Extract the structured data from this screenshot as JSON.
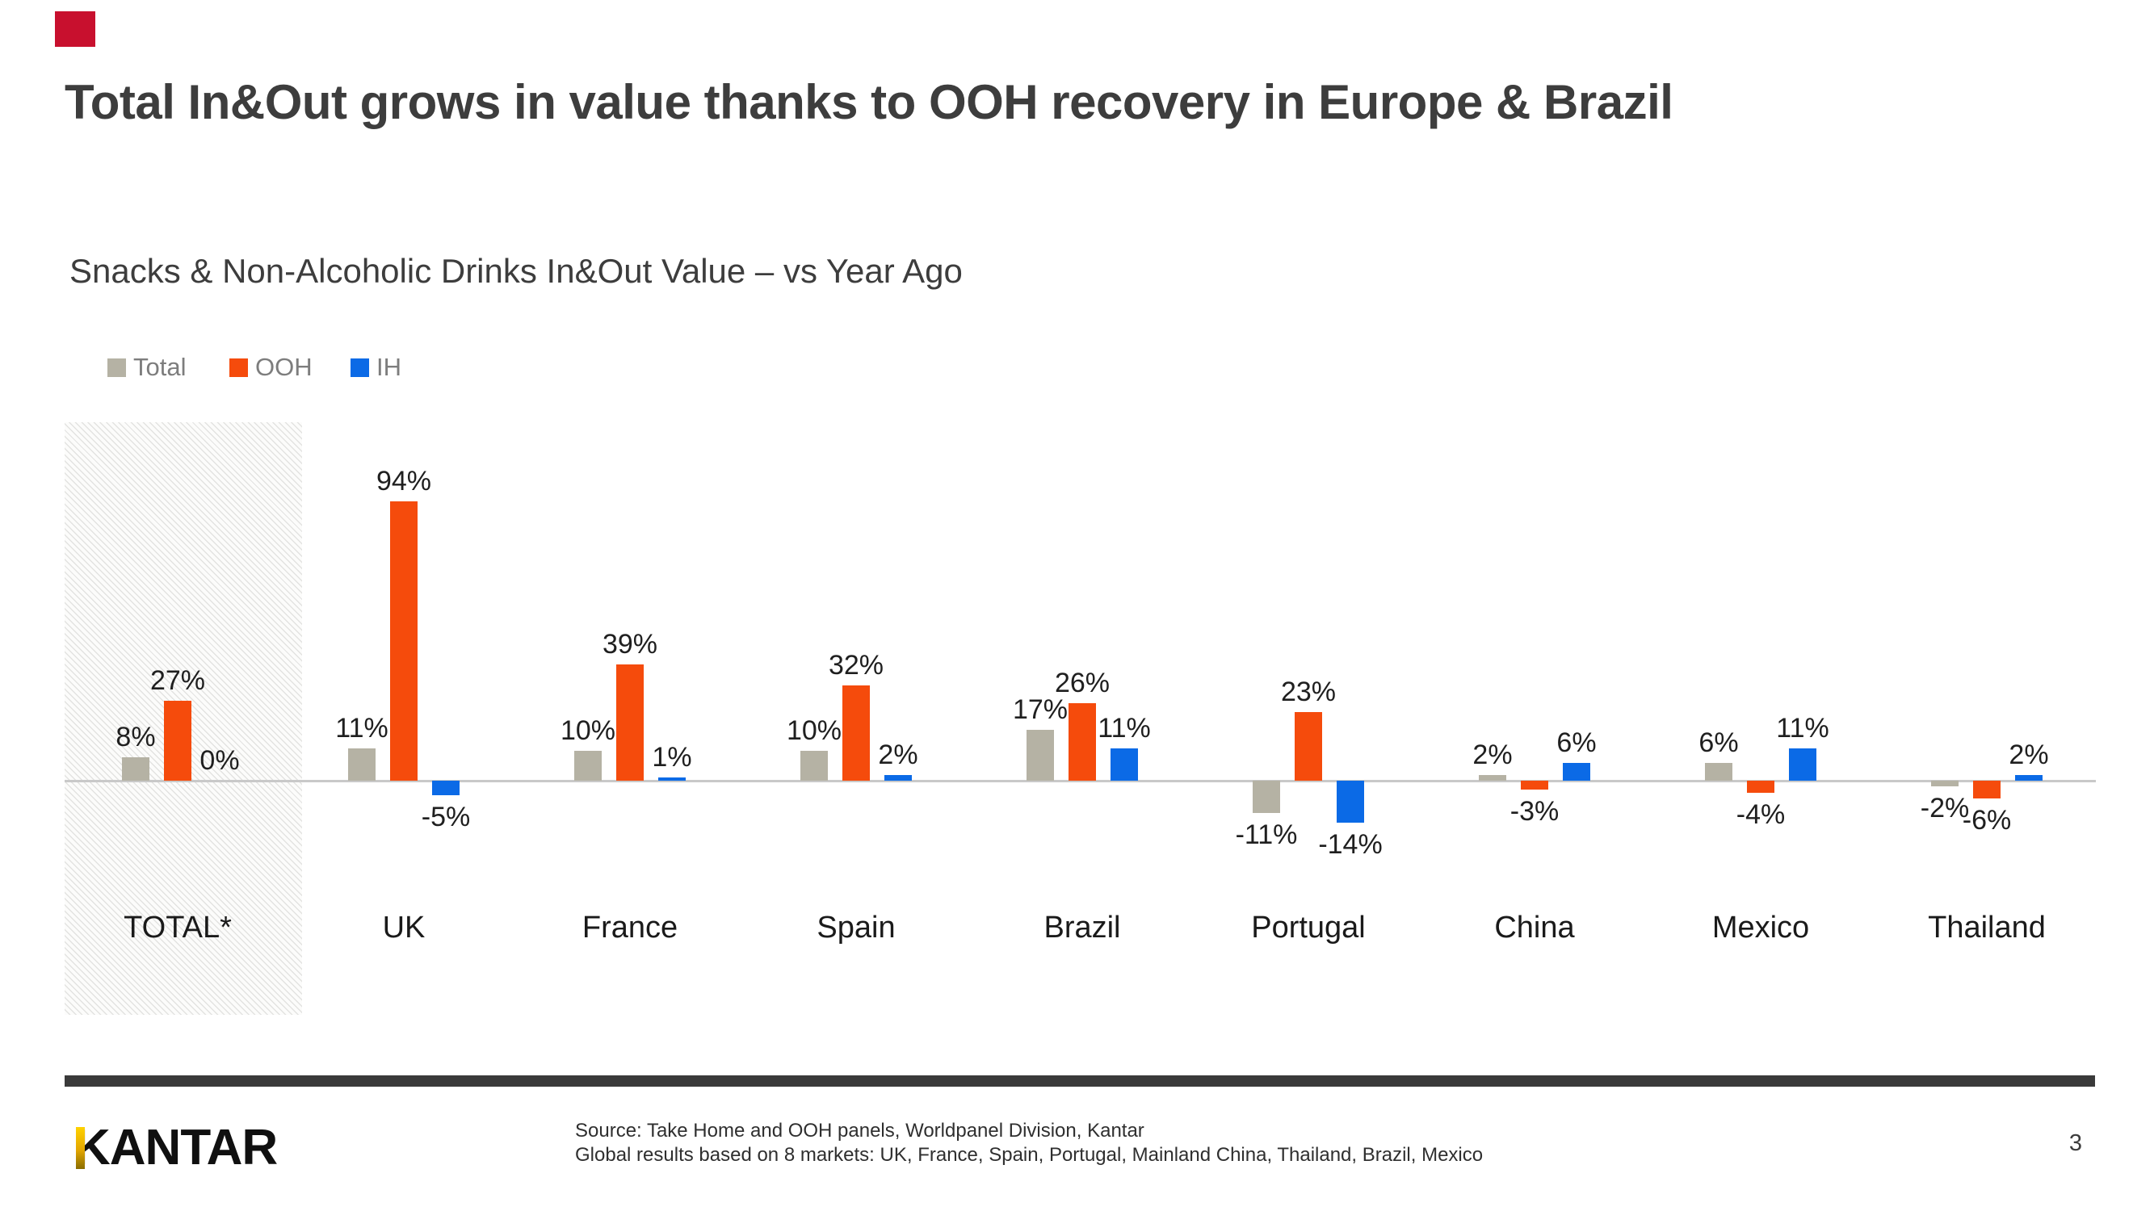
{
  "slide": {
    "title": "Total In&Out grows in value thanks to OOH recovery in Europe & Brazil",
    "accent_color": "#c8102e",
    "page_number": "3"
  },
  "footer": {
    "bar_color": "#3a3a3a",
    "logo_text": "KANTAR",
    "source_lines": [
      "Source: Take Home and OOH panels, Worldpanel Division, Kantar",
      "Global results based on 8 markets: UK, France, Spain, Portugal, Mainland China, Thailand, Brazil, Mexico"
    ]
  },
  "chart_data": {
    "type": "bar",
    "title": "Snacks & Non-Alcoholic Drinks In&Out Value – vs Year Ago",
    "categories": [
      "TOTAL*",
      "UK",
      "France",
      "Spain",
      "Brazil",
      "Portugal",
      "China",
      "Mexico",
      "Thailand"
    ],
    "series": [
      {
        "name": "Total",
        "color": "#b5b2a4",
        "values": [
          8,
          11,
          10,
          10,
          17,
          -11,
          2,
          6,
          -2
        ]
      },
      {
        "name": "OOH",
        "color": "#f54b0c",
        "values": [
          27,
          94,
          39,
          32,
          26,
          23,
          -3,
          -4,
          -6
        ]
      },
      {
        "name": "IH",
        "color": "#0b6ae6",
        "values": [
          0,
          -5,
          1,
          2,
          11,
          -14,
          6,
          11,
          2
        ]
      }
    ],
    "value_suffix": "%",
    "data_labels": true,
    "highlighted_category": "TOTAL*",
    "legend_position": "top-left",
    "legend_text_color": "#7d7d7d",
    "grid": false,
    "baseline": 0,
    "ylim": [
      -20,
      100
    ],
    "axis_line_color": "#c9c9c9"
  }
}
